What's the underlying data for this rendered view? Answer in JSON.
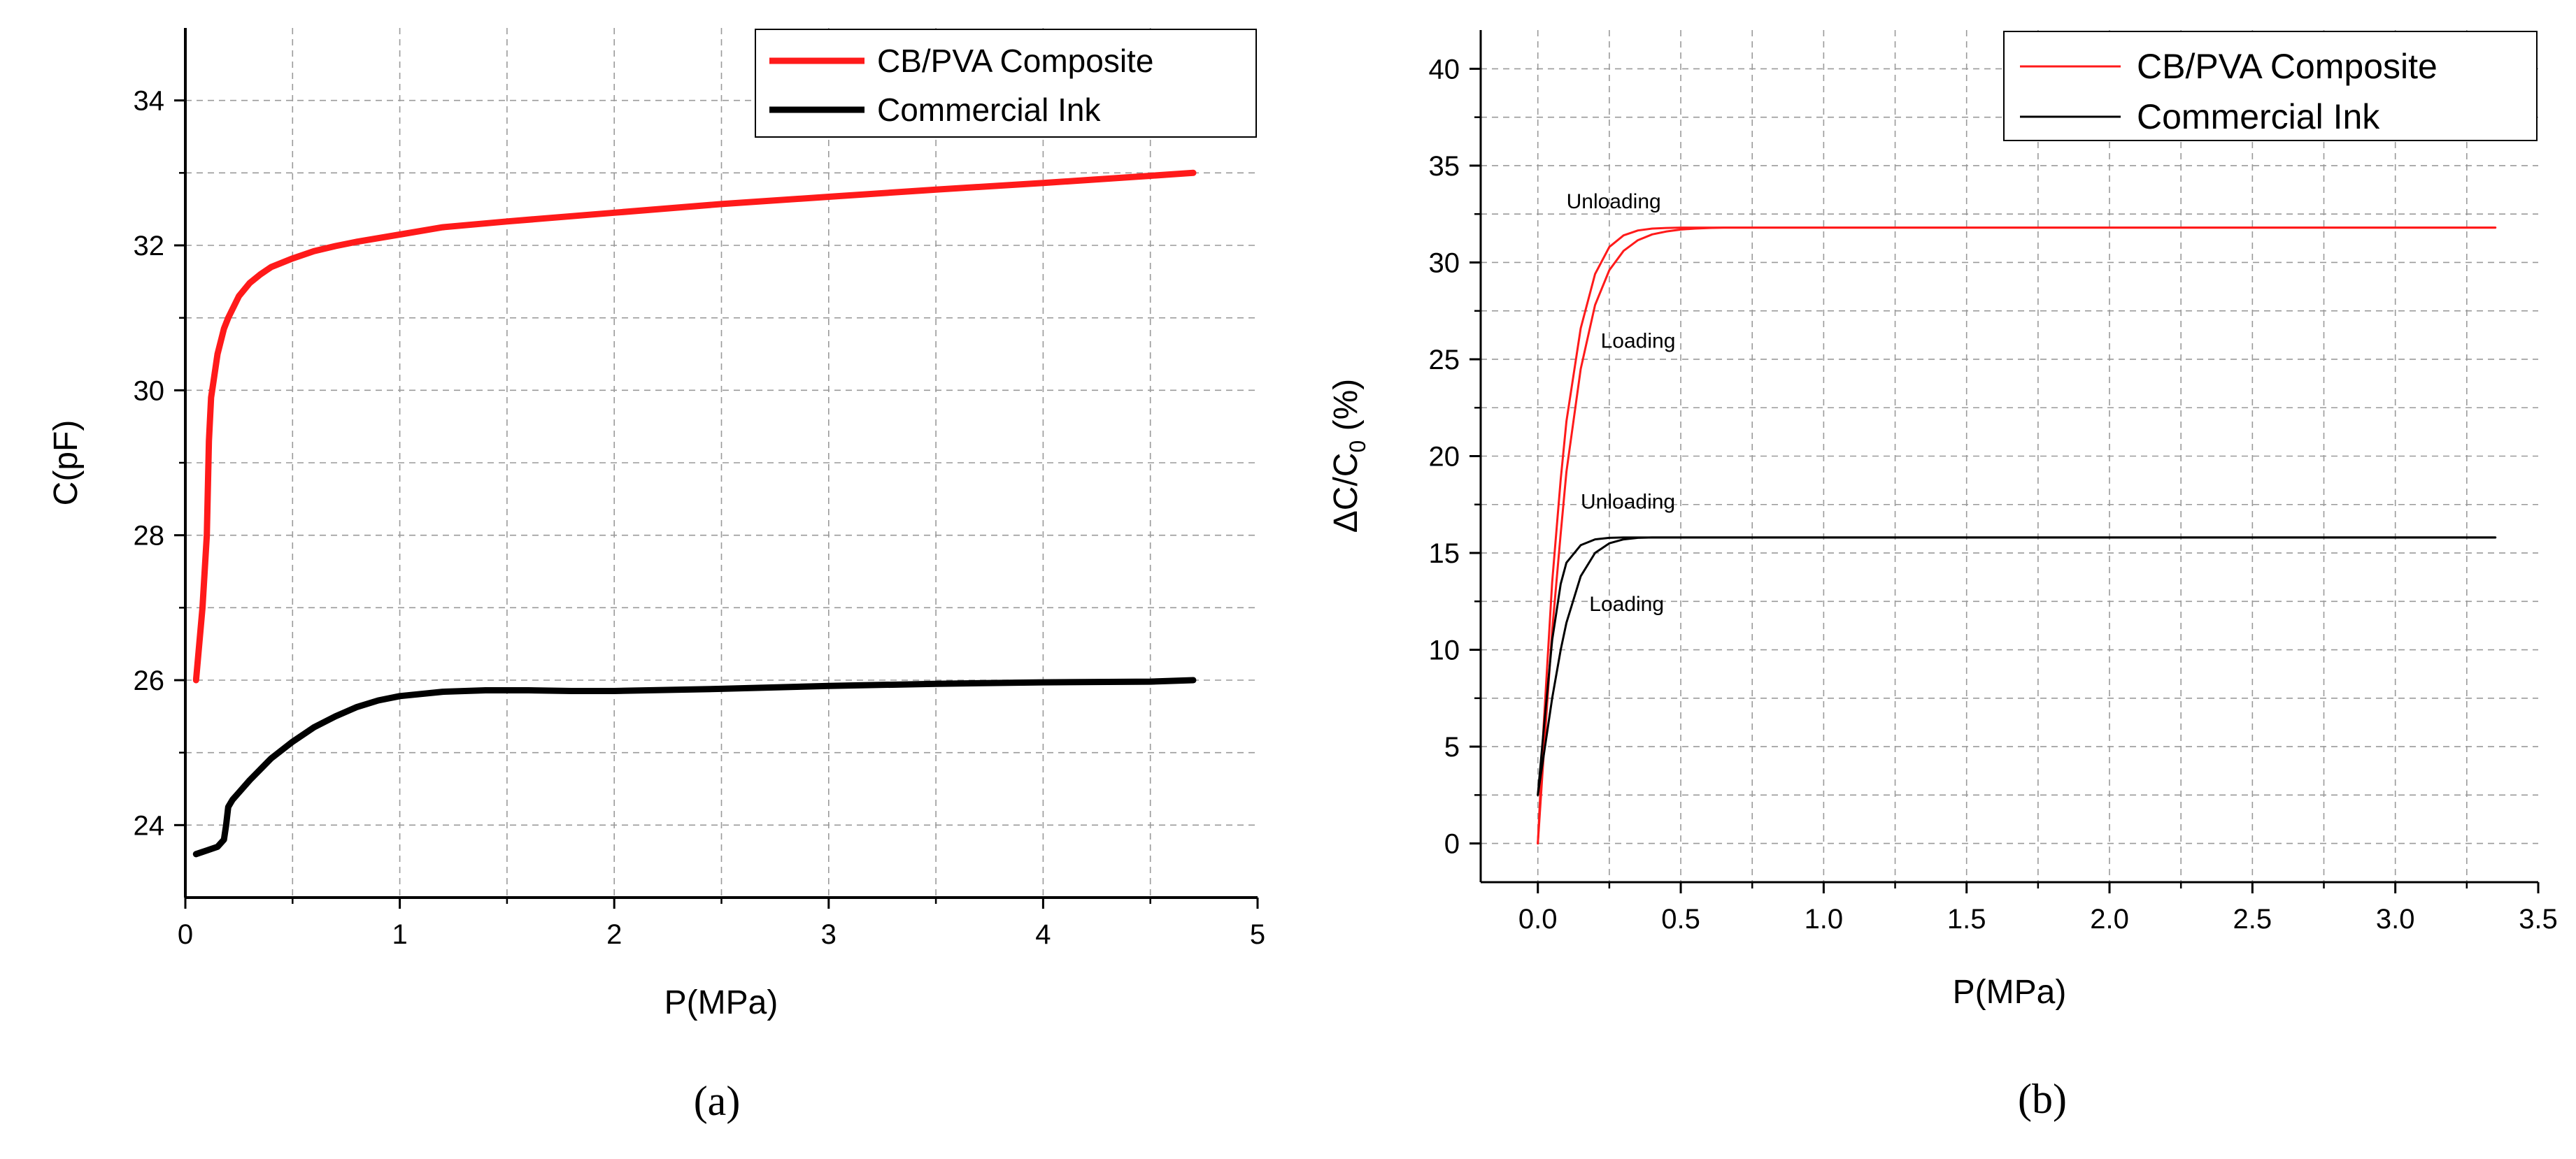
{
  "figure": {
    "captions": [
      "(a)",
      "(b)"
    ]
  },
  "chart_data": [
    {
      "type": "line",
      "panel": "(a)",
      "xlabel": "P(MPa)",
      "ylabel": "C(pF)",
      "xlim": [
        0,
        5
      ],
      "ylim": [
        23,
        35
      ],
      "xticks": [
        "0",
        "1",
        "2",
        "3",
        "4",
        "5"
      ],
      "yticks": [
        "24",
        "26",
        "28",
        "30",
        "32",
        "34"
      ],
      "grid": true,
      "legend_position": "top-right",
      "series": [
        {
          "name": "CB/PVA Composite",
          "color": "#ff1a1a",
          "x": [
            0.05,
            0.08,
            0.1,
            0.11,
            0.12,
            0.13,
            0.15,
            0.18,
            0.2,
            0.25,
            0.3,
            0.35,
            0.4,
            0.5,
            0.6,
            0.7,
            0.8,
            1.0,
            1.2,
            1.5,
            2.0,
            2.5,
            3.0,
            3.5,
            4.0,
            4.5,
            4.7
          ],
          "y": [
            26.0,
            27.0,
            28.0,
            29.3,
            29.9,
            30.1,
            30.5,
            30.85,
            31.0,
            31.3,
            31.48,
            31.6,
            31.7,
            31.82,
            31.92,
            31.99,
            32.05,
            32.15,
            32.25,
            32.33,
            32.45,
            32.57,
            32.67,
            32.77,
            32.86,
            32.96,
            33.0
          ]
        },
        {
          "name": "Commercial Ink",
          "color": "#000000",
          "x": [
            0.05,
            0.1,
            0.15,
            0.18,
            0.19,
            0.2,
            0.22,
            0.25,
            0.3,
            0.4,
            0.5,
            0.6,
            0.7,
            0.8,
            0.9,
            1.0,
            1.2,
            1.4,
            1.6,
            1.8,
            2.0,
            2.5,
            3.0,
            3.5,
            4.0,
            4.5,
            4.7
          ],
          "y": [
            23.6,
            23.65,
            23.7,
            23.8,
            24.0,
            24.25,
            24.35,
            24.45,
            24.62,
            24.92,
            25.15,
            25.35,
            25.5,
            25.63,
            25.72,
            25.78,
            25.84,
            25.86,
            25.86,
            25.85,
            25.85,
            25.88,
            25.92,
            25.95,
            25.97,
            25.98,
            26.0
          ]
        }
      ]
    },
    {
      "type": "line",
      "panel": "(b)",
      "xlabel": "P(MPa)",
      "ylabel": "ΔC/C",
      "ylabel_subscript": "0",
      "ylabel_suffix": " (%)",
      "xlim": [
        -0.2,
        3.5
      ],
      "ylim": [
        -2,
        42
      ],
      "xticks": [
        "0.0",
        "0.5",
        "1.0",
        "1.5",
        "2.0",
        "2.5",
        "3.0",
        "3.5"
      ],
      "yticks": [
        "0",
        "5",
        "10",
        "15",
        "20",
        "25",
        "30",
        "35",
        "40"
      ],
      "grid": true,
      "legend_position": "top-right",
      "series": [
        {
          "name": "CB/PVA Composite",
          "color": "#ff1a1a",
          "x": [
            0,
            0.02,
            0.05,
            0.08,
            0.1,
            0.15,
            0.2,
            0.25,
            0.3,
            0.35,
            0.4,
            0.45,
            0.5,
            0.55,
            0.6,
            0.65,
            0.7,
            1.0,
            2.0,
            3.0,
            3.35
          ],
          "loading": [
            0,
            4.5,
            11.0,
            16.0,
            19.2,
            24.5,
            27.8,
            29.6,
            30.6,
            31.15,
            31.45,
            31.6,
            31.7,
            31.75,
            31.78,
            31.8,
            31.8,
            31.8,
            31.8,
            31.8,
            31.8
          ],
          "unloading": [
            0,
            6.0,
            13.5,
            18.8,
            21.8,
            26.6,
            29.4,
            30.8,
            31.4,
            31.65,
            31.75,
            31.78,
            31.8,
            31.8,
            31.8,
            31.8,
            31.8,
            31.8,
            31.8,
            31.8,
            31.8
          ]
        },
        {
          "name": "Commercial Ink",
          "color": "#000000",
          "x": [
            0,
            0.02,
            0.05,
            0.08,
            0.1,
            0.15,
            0.2,
            0.25,
            0.3,
            0.35,
            0.4,
            0.45,
            0.5,
            1.0,
            2.0,
            3.0,
            3.35
          ],
          "loading": [
            2.5,
            4.5,
            7.5,
            10.0,
            11.4,
            13.8,
            15.0,
            15.5,
            15.7,
            15.78,
            15.8,
            15.8,
            15.8,
            15.8,
            15.8,
            15.8,
            15.8
          ],
          "unloading": [
            2.5,
            5.8,
            10.5,
            13.4,
            14.5,
            15.4,
            15.7,
            15.78,
            15.8,
            15.8,
            15.8,
            15.8,
            15.8,
            15.8,
            15.8,
            15.8,
            15.8
          ]
        }
      ],
      "annotations": [
        {
          "text": "Unloading",
          "x": 0.1,
          "y": 32.8
        },
        {
          "text": "Loading",
          "x": 0.22,
          "y": 25.6
        },
        {
          "text": "Unloading",
          "x": 0.15,
          "y": 17.3
        },
        {
          "text": "Loading",
          "x": 0.18,
          "y": 12.0
        }
      ]
    }
  ]
}
